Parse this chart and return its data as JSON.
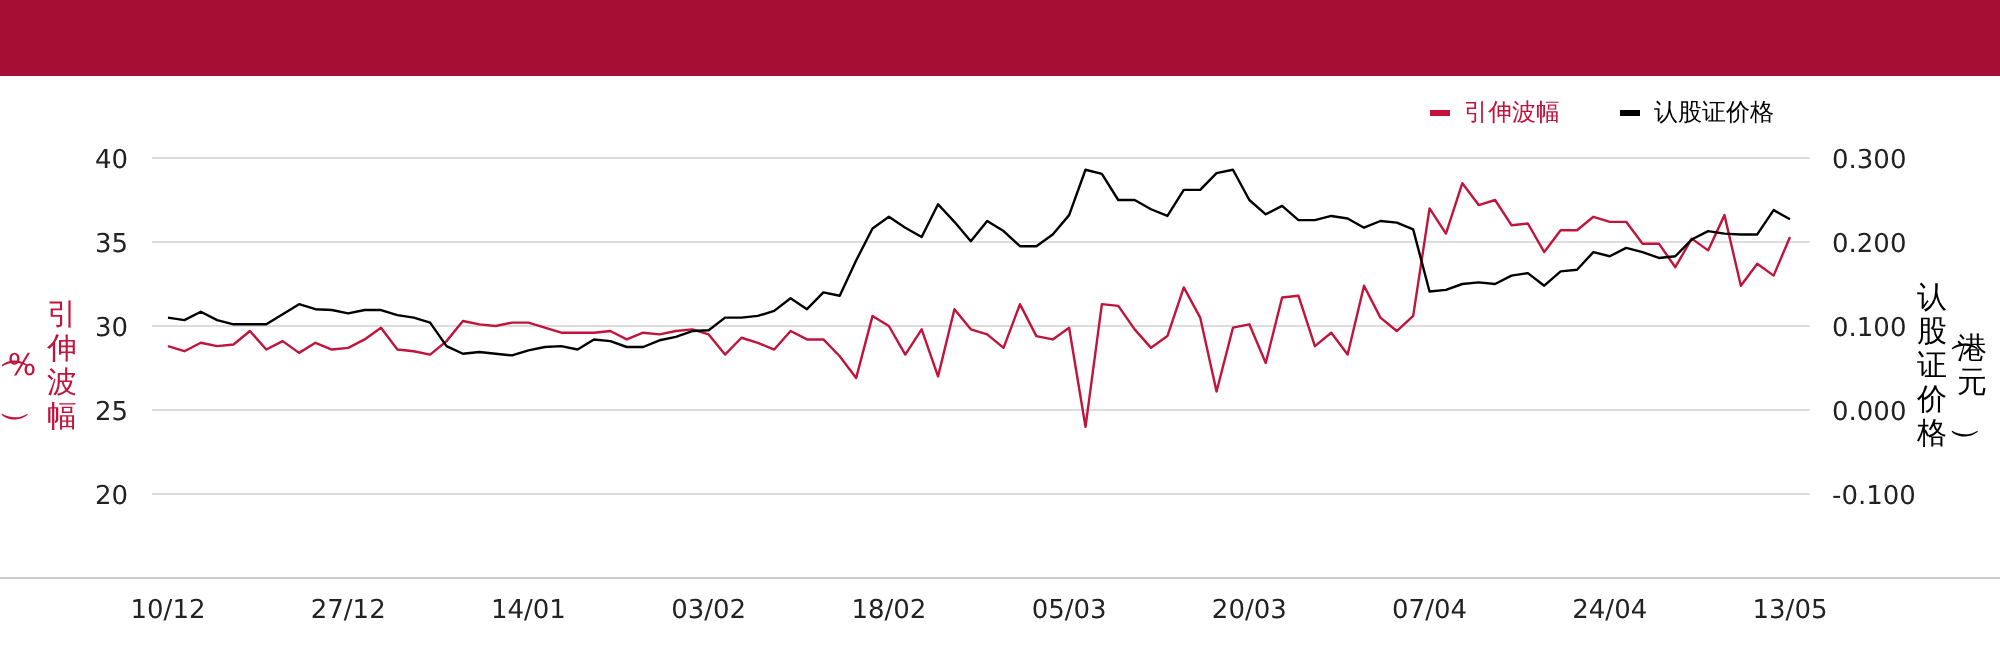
{
  "chart_data": {
    "type": "line",
    "categories": [
      "10/12",
      null,
      null,
      null,
      null,
      null,
      null,
      null,
      null,
      null,
      null,
      "27/12",
      null,
      null,
      null,
      null,
      null,
      null,
      null,
      null,
      null,
      null,
      "14/01",
      null,
      null,
      null,
      null,
      null,
      null,
      null,
      null,
      null,
      null,
      "03/02",
      null,
      null,
      null,
      null,
      null,
      null,
      null,
      null,
      null,
      null,
      "18/02",
      null,
      null,
      null,
      null,
      null,
      null,
      null,
      null,
      null,
      null,
      "05/03",
      null,
      null,
      null,
      null,
      null,
      null,
      null,
      null,
      null,
      null,
      "20/03",
      null,
      null,
      null,
      null,
      null,
      null,
      null,
      null,
      null,
      null,
      "07/04",
      null,
      null,
      null,
      null,
      null,
      null,
      null,
      null,
      null,
      null,
      "24/04",
      null,
      null,
      null,
      null,
      null,
      null,
      null,
      null,
      null,
      null,
      "13/05"
    ],
    "series": [
      {
        "name": "引伸波幅",
        "color": "#c0143c",
        "values": [
          28.8,
          28.5,
          29.0,
          28.8,
          28.9,
          29.7,
          28.6,
          29.1,
          28.4,
          29.0,
          28.6,
          28.7,
          29.2,
          29.9,
          28.6,
          28.5,
          28.3,
          29.1,
          30.3,
          30.1,
          30.0,
          30.2,
          30.2,
          29.9,
          29.6,
          29.6,
          29.6,
          29.7,
          29.2,
          29.6,
          29.5,
          29.7,
          29.8,
          29.5,
          28.3,
          29.3,
          29.0,
          28.6,
          29.7,
          29.2,
          29.2,
          28.2,
          26.9,
          30.6,
          30.0,
          28.3,
          29.8,
          27.0,
          31.0,
          29.8,
          29.5,
          28.7,
          31.3,
          29.4,
          29.2,
          29.9,
          24.0,
          31.3,
          31.2,
          29.8,
          28.7,
          29.4,
          32.3,
          30.5,
          26.1,
          29.9,
          30.1,
          27.8,
          31.7,
          31.8,
          28.8,
          29.6,
          28.3,
          32.4,
          30.5,
          29.7,
          30.6,
          37.0,
          35.5,
          38.5,
          37.2,
          37.5,
          36.0,
          36.1,
          34.4,
          35.7,
          35.7,
          36.5,
          36.2,
          36.2,
          34.9,
          34.9,
          33.5,
          35.2,
          34.5,
          36.6,
          32.4,
          33.7,
          33.0,
          35.3
        ]
      },
      {
        "name": "认股证价格",
        "color": "#000000",
        "axis": "y2",
        "values": [
          0.11,
          0.107,
          0.117,
          0.107,
          0.102,
          0.102,
          0.102,
          0.114,
          0.126,
          0.12,
          0.119,
          0.115,
          0.119,
          0.119,
          0.113,
          0.11,
          0.104,
          0.076,
          0.067,
          0.069,
          0.067,
          0.065,
          0.071,
          0.075,
          0.076,
          0.072,
          0.084,
          0.082,
          0.075,
          0.075,
          0.083,
          0.087,
          0.094,
          0.095,
          0.11,
          0.11,
          0.112,
          0.118,
          0.133,
          0.12,
          0.14,
          0.136,
          0.178,
          0.216,
          0.23,
          0.217,
          0.206,
          0.245,
          0.224,
          0.201,
          0.225,
          0.213,
          0.195,
          0.195,
          0.209,
          0.232,
          0.286,
          0.281,
          0.25,
          0.25,
          0.239,
          0.231,
          0.262,
          0.262,
          0.282,
          0.286,
          0.25,
          0.233,
          0.243,
          0.226,
          0.226,
          0.231,
          0.228,
          0.217,
          0.225,
          0.223,
          0.215,
          0.141,
          0.143,
          0.15,
          0.152,
          0.15,
          0.16,
          0.163,
          0.148,
          0.165,
          0.167,
          0.188,
          0.183,
          0.193,
          0.188,
          0.181,
          0.183,
          0.203,
          0.213,
          0.21,
          0.209,
          0.209,
          0.238,
          0.227
        ]
      }
    ],
    "ylabel": "引伸波幅（%）",
    "y2label": "认股证价格（港元）",
    "ylim": [
      15,
      40
    ],
    "yticks": [
      20,
      25,
      30,
      35,
      40
    ],
    "y2lim": [
      -0.2,
      0.3
    ],
    "y2ticks": [
      {
        "value": -0.1,
        "label": "-0.100"
      },
      {
        "value": 0,
        "label": "0.000"
      },
      {
        "value": 0.1,
        "label": "0.100"
      },
      {
        "value": 0.2,
        "label": "0.200"
      },
      {
        "value": 0.3,
        "label": "0.300"
      }
    ],
    "grid": "y",
    "legend": "top right",
    "marker": "none",
    "line_style": "solid"
  }
}
